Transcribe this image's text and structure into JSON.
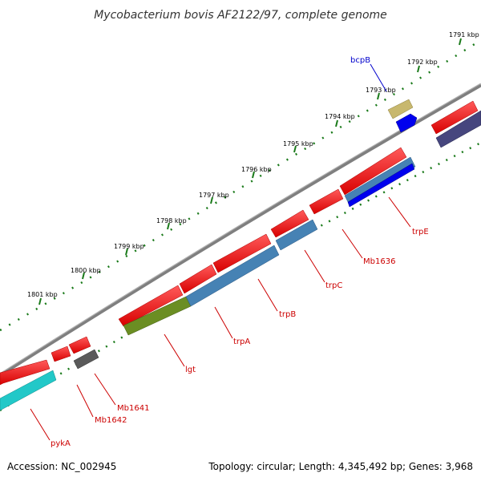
{
  "title": "Mycobacterium bovis AF2122/97, complete genome",
  "footer": {
    "accession": "Accession: NC_002945",
    "summary": "Topology: circular; Length: 4,345,492 bp; Genes: 3,968"
  },
  "colors": {
    "backbone": "#7f7f7f",
    "tick": "#1a7a1a",
    "forward_gene": "#ff0000",
    "label_red": "#cc0000",
    "label_blue": "#0000cc"
  },
  "kbp_labels": [
    "1791 kbp",
    "1792 kbp",
    "1793 kbp",
    "1794 kbp",
    "1795 kbp",
    "1796 kbp",
    "1797 kbp",
    "1798 kbp",
    "1799 kbp",
    "1800 kbp",
    "1801 kbp"
  ],
  "genes": [
    {
      "label": "bcpB",
      "color": "blue"
    },
    {
      "label": "trpE",
      "color": "red"
    },
    {
      "label": "Mb1636",
      "color": "red"
    },
    {
      "label": "trpC",
      "color": "red"
    },
    {
      "label": "trpB",
      "color": "red"
    },
    {
      "label": "trpA",
      "color": "red"
    },
    {
      "label": "lgt",
      "color": "red"
    },
    {
      "label": "Mb1641",
      "color": "red"
    },
    {
      "label": "Mb1642",
      "color": "red"
    },
    {
      "label": "pykA",
      "color": "red"
    }
  ]
}
